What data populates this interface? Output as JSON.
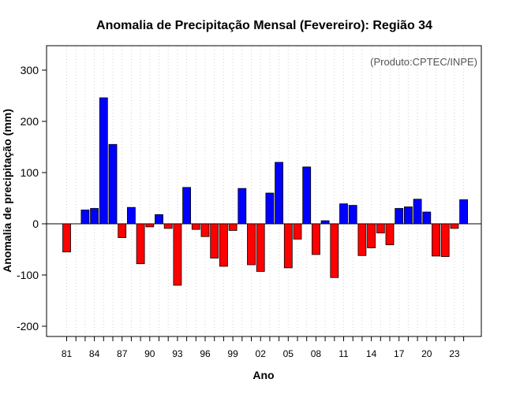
{
  "chart_data": {
    "type": "bar",
    "title": "Anomalia de Precipitação Mensal (Fevereiro): Região 34",
    "xlabel": "Ano",
    "ylabel": "Anomalia de precipitação (mm)",
    "annotation": "(Produto:CPTEC/INPE)",
    "ylim": [
      -220,
      350
    ],
    "yticks": [
      -200,
      -100,
      0,
      100,
      200,
      300
    ],
    "x_tick_labels": [
      "81",
      "84",
      "87",
      "90",
      "93",
      "96",
      "99",
      "02",
      "05",
      "08",
      "11",
      "14",
      "17",
      "20",
      "23"
    ],
    "grid": "vertical dotted",
    "positive_color": "#0000ff",
    "negative_color": "#ff0000",
    "categories": [
      "1981",
      "1982",
      "1983",
      "1984",
      "1985",
      "1986",
      "1987",
      "1988",
      "1989",
      "1990",
      "1991",
      "1992",
      "1993",
      "1994",
      "1995",
      "1996",
      "1997",
      "1998",
      "1999",
      "2000",
      "2001",
      "2002",
      "2003",
      "2004",
      "2005",
      "2006",
      "2007",
      "2008",
      "2009",
      "2010",
      "2011",
      "2012",
      "2013",
      "2014",
      "2015",
      "2016",
      "2017",
      "2018",
      "2019",
      "2020",
      "2021",
      "2022",
      "2023",
      "2024"
    ],
    "values": [
      -55,
      0,
      27,
      30,
      246,
      155,
      -27,
      32,
      -78,
      -6,
      18,
      -9,
      -120,
      71,
      -11,
      -25,
      -67,
      -83,
      -13,
      69,
      -80,
      -93,
      60,
      120,
      -86,
      -30,
      111,
      -60,
      6,
      -105,
      39,
      36,
      -62,
      -47,
      -18,
      -41,
      30,
      33,
      48,
      23,
      -63,
      -64,
      -9,
      47
    ]
  }
}
